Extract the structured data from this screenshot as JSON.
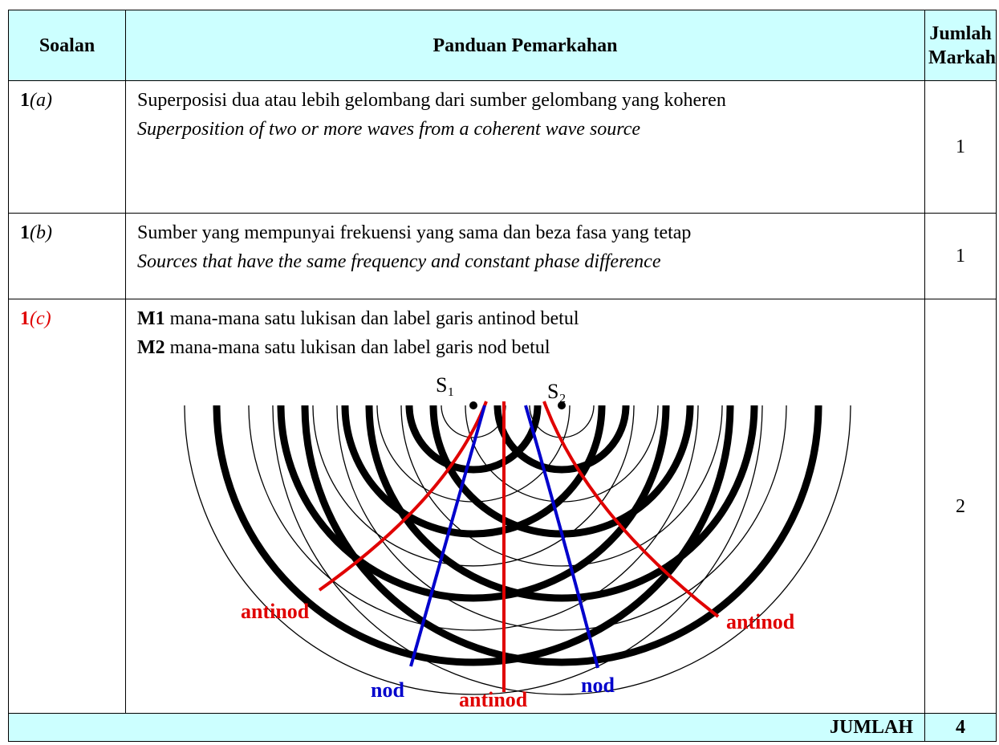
{
  "table": {
    "header": [
      "Soalan",
      "Panduan Pemarkahan",
      "Jumlah Markah"
    ],
    "rows": [
      {
        "number": "1",
        "part": "(a)",
        "malay": "Superposisi dua atau lebih gelombang dari sumber gelombang yang koheren",
        "english": "Superposition of two or more waves from a coherent wave source",
        "marks": 1
      },
      {
        "number": "1",
        "part": "(b)",
        "malay": "Sumber yang mempunyai frekuensi yang sama dan beza fasa yang tetap",
        "english": "Sources that have the same frequency and constant phase difference",
        "marks": 1
      },
      {
        "number": "1",
        "part": "(c)",
        "points": [
          {
            "code": "M1",
            "text": "mana-mana satu lukisan dan label garis antinod betul"
          },
          {
            "code": "M2",
            "text": "mana-mana satu lukisan dan label garis nod betul"
          }
        ],
        "diagram": {
          "sources": [
            "S₁",
            "S₂"
          ],
          "labels": [
            "antinod",
            "nod",
            "antinod",
            "nod",
            "antinod"
          ]
        },
        "marks": 2
      }
    ],
    "total_label": "JUMLAH",
    "total": 4
  }
}
